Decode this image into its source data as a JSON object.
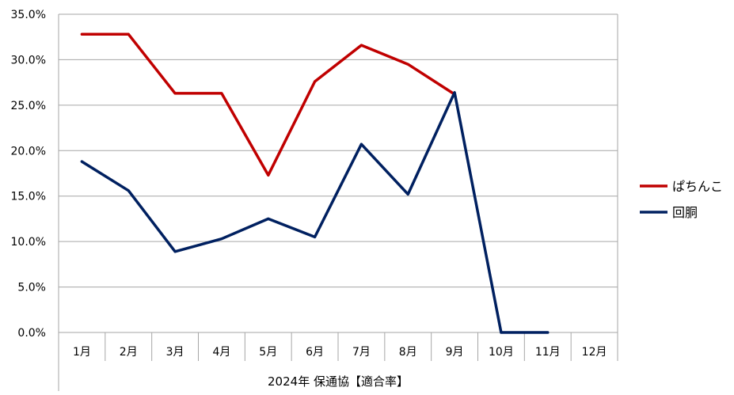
{
  "chart_data": {
    "type": "line",
    "categories": [
      "1月",
      "2月",
      "3月",
      "4月",
      "5月",
      "6月",
      "7月",
      "8月",
      "9月",
      "10月",
      "11月",
      "12月"
    ],
    "series": [
      {
        "name": "ぱちんこ",
        "color": "#C00000",
        "values": [
          32.8,
          32.8,
          26.3,
          26.3,
          17.3,
          27.6,
          31.6,
          29.5,
          26.2,
          null,
          null,
          null
        ]
      },
      {
        "name": "回胴",
        "color": "#002060",
        "values": [
          18.8,
          15.6,
          8.9,
          10.3,
          12.5,
          10.5,
          20.7,
          15.2,
          26.4,
          0.0,
          0.0,
          null
        ]
      }
    ],
    "y_ticks": [
      "0.0%",
      "5.0%",
      "10.0%",
      "15.0%",
      "20.0%",
      "25.0%",
      "30.0%",
      "35.0%"
    ],
    "ylim": [
      0,
      35
    ],
    "xlabel": "2024年 保通協【適合率】",
    "grid": true,
    "legend_position": "right"
  }
}
